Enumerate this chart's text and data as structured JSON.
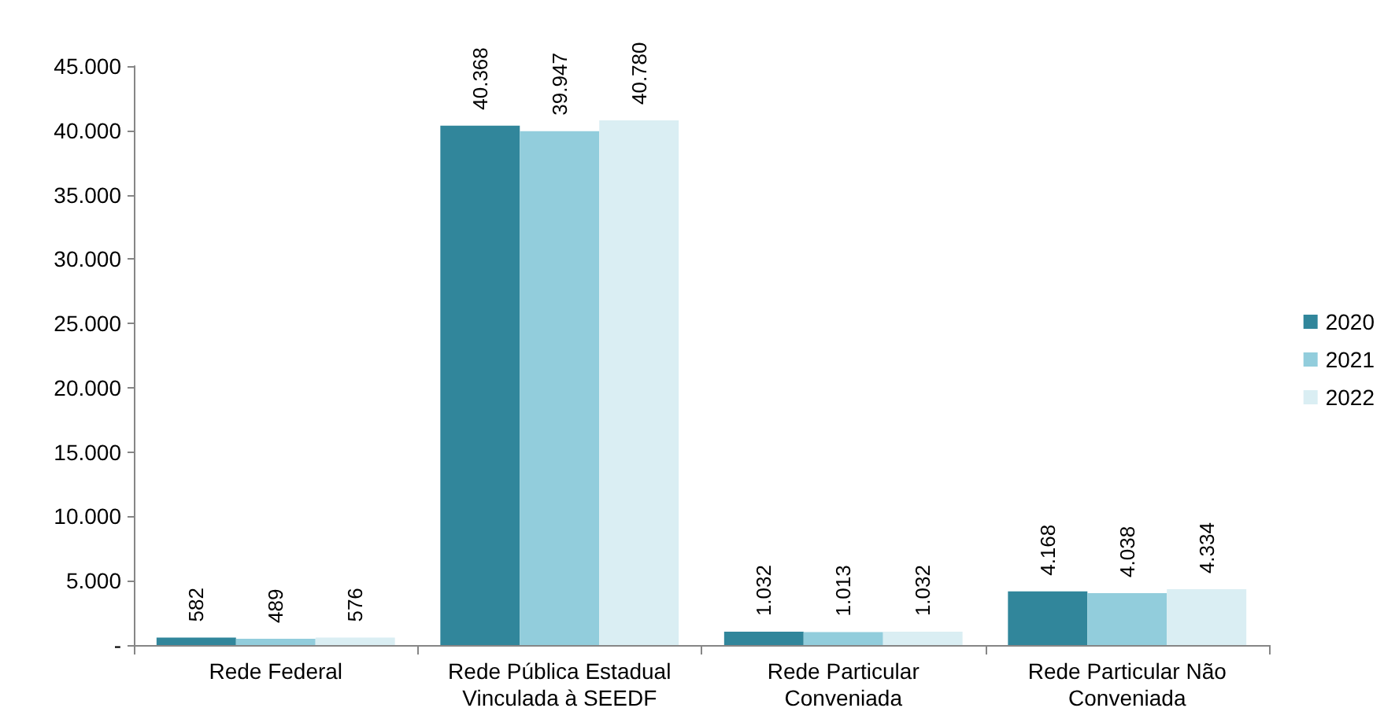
{
  "chart_data": {
    "type": "bar",
    "categories": [
      "Rede Federal",
      "Rede Pública Estadual\nVinculada à SEEDF",
      "Rede Particular\nConveniada",
      "Rede Particular Não\nConveniada"
    ],
    "series": [
      {
        "name": "2020",
        "color": "#31869b",
        "values": [
          582,
          40368,
          1032,
          4168
        ],
        "value_labels": [
          "582",
          "40.368",
          "1.032",
          "4.168"
        ]
      },
      {
        "name": "2021",
        "color": "#92cddc",
        "values": [
          489,
          39947,
          1013,
          4038
        ],
        "value_labels": [
          "489",
          "39.947",
          "1.013",
          "4.038"
        ]
      },
      {
        "name": "2022",
        "color": "#daeef3",
        "values": [
          576,
          40780,
          1032,
          4334
        ],
        "value_labels": [
          "576",
          "40.780",
          "1.032",
          "4.334"
        ]
      }
    ],
    "ylim": [
      0,
      45000
    ],
    "yticks": [
      {
        "value": 0,
        "label": "-"
      },
      {
        "value": 5000,
        "label": "5.000"
      },
      {
        "value": 10000,
        "label": "10.000"
      },
      {
        "value": 15000,
        "label": "15.000"
      },
      {
        "value": 20000,
        "label": "20.000"
      },
      {
        "value": 25000,
        "label": "25.000"
      },
      {
        "value": 30000,
        "label": "30.000"
      },
      {
        "value": 35000,
        "label": "35.000"
      },
      {
        "value": 40000,
        "label": "40.000"
      },
      {
        "value": 45000,
        "label": "45.000"
      }
    ],
    "grid": false,
    "legend": "right"
  }
}
